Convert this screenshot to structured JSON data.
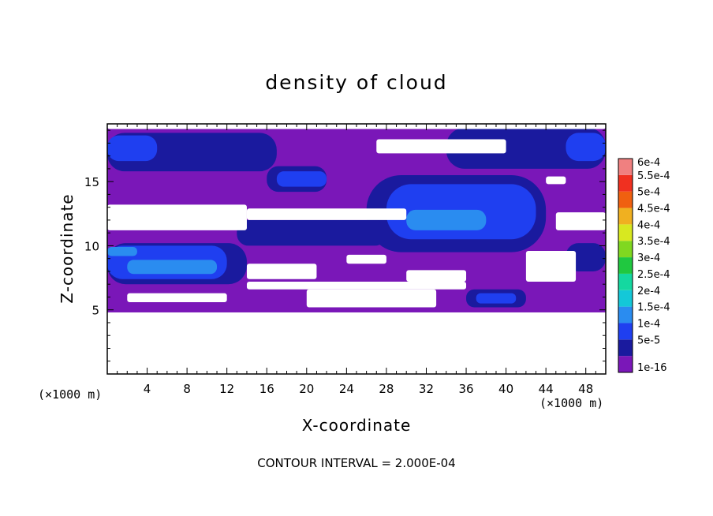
{
  "chart_data": {
    "type": "heatmap",
    "title": "density of cloud",
    "xlabel": "X-coordinate",
    "ylabel": "Z-coordinate",
    "x_unit_label": "(×1000 m)",
    "y_unit_label": "(×1000 m)",
    "xlim": [
      0,
      50
    ],
    "ylim": [
      0,
      19.5
    ],
    "x_ticks": [
      4,
      8,
      12,
      16,
      20,
      24,
      28,
      32,
      36,
      40,
      44,
      48
    ],
    "y_ticks": [
      5,
      10,
      15
    ],
    "footnote": "CONTOUR INTERVAL = 2.000E-04",
    "colorbar": {
      "labels": [
        "1e-16",
        "5e-5",
        "1e-4",
        "1.5e-4",
        "2e-4",
        "2.5e-4",
        "3e-4",
        "3.5e-4",
        "4e-4",
        "4.5e-4",
        "5e-4",
        "5.5e-4",
        "6e-4"
      ],
      "colors": [
        "#7a17b8",
        "#1a1a9e",
        "#1f3ff0",
        "#2a8cf0",
        "#14c8d8",
        "#14d8a0",
        "#20c840",
        "#80d820",
        "#d8e820",
        "#f0b020",
        "#f06010",
        "#f03020",
        "#f08080"
      ]
    },
    "regions": [
      {
        "level": 0,
        "x0": 0,
        "x1": 50,
        "y0": 4.8,
        "y1": 19.5
      },
      {
        "level": 1,
        "x0": 0,
        "x1": 17,
        "y0": 15.8,
        "y1": 18.8
      },
      {
        "level": 1,
        "x0": 34,
        "x1": 50,
        "y0": 16.0,
        "y1": 19.2
      },
      {
        "level": 1,
        "x0": 16,
        "x1": 22,
        "y0": 14.2,
        "y1": 16.2
      },
      {
        "level": 1,
        "x0": 26,
        "x1": 44,
        "y0": 9.5,
        "y1": 15.5
      },
      {
        "level": 1,
        "x0": 0,
        "x1": 14,
        "y0": 7.0,
        "y1": 10.2
      },
      {
        "level": 1,
        "x0": 13,
        "x1": 28,
        "y0": 10.0,
        "y1": 12.0
      },
      {
        "level": 1,
        "x0": 46,
        "x1": 50,
        "y0": 8.0,
        "y1": 10.2
      },
      {
        "level": 1,
        "x0": 36,
        "x1": 42,
        "y0": 5.2,
        "y1": 6.6
      },
      {
        "level": 2,
        "x0": 0,
        "x1": 5,
        "y0": 16.6,
        "y1": 18.6
      },
      {
        "level": 2,
        "x0": 46,
        "x1": 50,
        "y0": 16.6,
        "y1": 18.8
      },
      {
        "level": 2,
        "x0": 17,
        "x1": 22,
        "y0": 14.6,
        "y1": 15.8
      },
      {
        "level": 2,
        "x0": 28,
        "x1": 43,
        "y0": 10.5,
        "y1": 14.8
      },
      {
        "level": 2,
        "x0": 0,
        "x1": 12,
        "y0": 7.4,
        "y1": 10.0
      },
      {
        "level": 2,
        "x0": 37,
        "x1": 41,
        "y0": 5.5,
        "y1": 6.3
      },
      {
        "level": 3,
        "x0": 2,
        "x1": 11,
        "y0": 7.8,
        "y1": 8.9
      },
      {
        "level": 3,
        "x0": 30,
        "x1": 38,
        "y0": 11.2,
        "y1": 12.8
      },
      {
        "level": 3,
        "x0": 0,
        "x1": 3,
        "y0": 9.2,
        "y1": 9.9
      }
    ],
    "gaps": [
      {
        "x0": 27,
        "x1": 40,
        "y0": 17.2,
        "y1": 18.3
      },
      {
        "x0": 44,
        "x1": 46,
        "y0": 14.8,
        "y1": 15.4
      },
      {
        "x0": 0,
        "x1": 14,
        "y0": 11.2,
        "y1": 13.2
      },
      {
        "x0": 14,
        "x1": 30,
        "y0": 12.0,
        "y1": 12.9
      },
      {
        "x0": 45,
        "x1": 50,
        "y0": 11.2,
        "y1": 12.6
      },
      {
        "x0": 14,
        "x1": 21,
        "y0": 7.4,
        "y1": 8.6
      },
      {
        "x0": 24,
        "x1": 28,
        "y0": 8.6,
        "y1": 9.3
      },
      {
        "x0": 30,
        "x1": 36,
        "y0": 7.2,
        "y1": 8.1
      },
      {
        "x0": 42,
        "x1": 47,
        "y0": 7.2,
        "y1": 9.6
      },
      {
        "x0": 14,
        "x1": 36,
        "y0": 6.6,
        "y1": 7.2
      },
      {
        "x0": 20,
        "x1": 33,
        "y0": 5.2,
        "y1": 6.6
      },
      {
        "x0": 2,
        "x1": 12,
        "y0": 5.6,
        "y1": 6.3
      },
      {
        "x0": 0,
        "x1": 50,
        "y0": 19.1,
        "y1": 19.5
      }
    ]
  }
}
